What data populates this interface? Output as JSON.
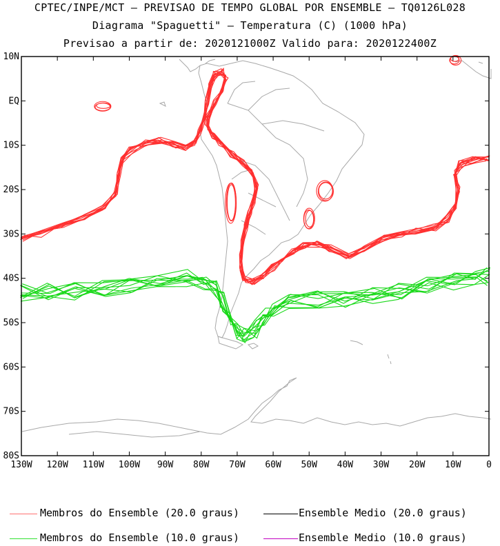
{
  "header": {
    "line1": "CPTEC/INPE/MCT – PREVISAO DE TEMPO GLOBAL POR ENSEMBLE – TQ0126L028",
    "line2": "Diagrama \"Spaguetti\" – Temperatura (C) (1000 hPa)",
    "line3": "Previsao a partir de: 2020121000Z  Valido para: 2020122400Z"
  },
  "map": {
    "lat_labels": [
      "10N",
      "EQ",
      "10S",
      "20S",
      "30S",
      "40S",
      "50S",
      "60S",
      "70S",
      "80S"
    ],
    "lon_labels": [
      "130W",
      "120W",
      "110W",
      "100W",
      "90W",
      "80W",
      "70W",
      "60W",
      "50W",
      "40W",
      "30W",
      "20W",
      "10W",
      "0"
    ],
    "lat_range": [
      -80,
      10
    ],
    "lon_range": [
      -130,
      0
    ],
    "coastline_color": "#a8a8a8",
    "ensemble_20_color": "#ff3030",
    "ensemble_10_color": "#18d818"
  },
  "legend": {
    "items": [
      {
        "label": "Membros do Ensemble (20.0 graus)",
        "color": "#ff7070"
      },
      {
        "label": "Ensemble Medio (20.0 graus)",
        "color": "#000000"
      },
      {
        "label": "Membros do Ensemble (10.0 graus)",
        "color": "#30e030"
      },
      {
        "label": "Ensemble Medio (10.0 graus)",
        "color": "#c000c0"
      }
    ]
  }
}
